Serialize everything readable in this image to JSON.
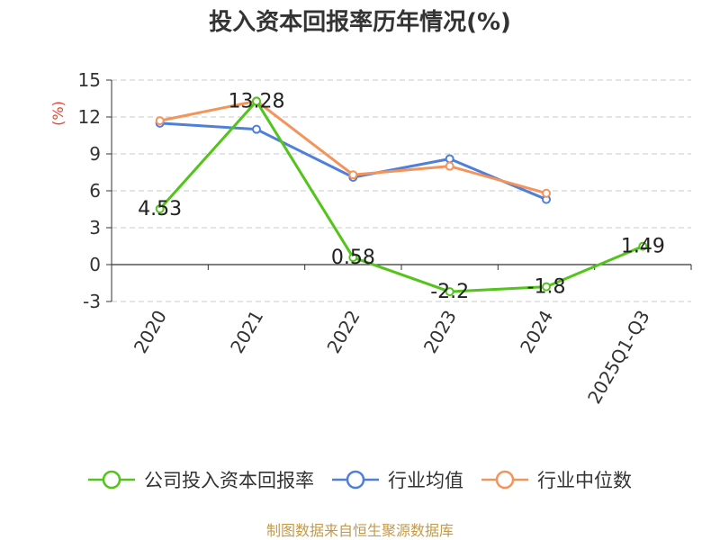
{
  "chart_data": {
    "type": "line",
    "title": "投入资本回报率历年情况(%)",
    "ylabel": "(%)",
    "categories": [
      "2020",
      "2021",
      "2022",
      "2023",
      "2024",
      "2025Q1-Q3"
    ],
    "ylim": [
      -3,
      15
    ],
    "yticks": [
      15,
      12,
      9,
      6,
      3,
      0,
      -3
    ],
    "grid": true,
    "legend_position": "bottom",
    "series": [
      {
        "name": "公司投入资本回报率",
        "color": "#52c41a",
        "values": [
          4.53,
          13.28,
          0.58,
          -2.2,
          -1.8,
          1.49
        ],
        "labels": [
          "4.53",
          "13.28",
          "0.58",
          "-2.2",
          "-1.8",
          "1.49"
        ]
      },
      {
        "name": "行业均值",
        "color": "#4f7fd8",
        "values": [
          11.5,
          11.0,
          7.1,
          8.6,
          5.3,
          null
        ]
      },
      {
        "name": "行业中位数",
        "color": "#f4935a",
        "values": [
          11.7,
          13.3,
          7.3,
          8.0,
          5.8,
          null
        ]
      }
    ]
  },
  "footer": "制图数据来自恒生聚源数据库"
}
